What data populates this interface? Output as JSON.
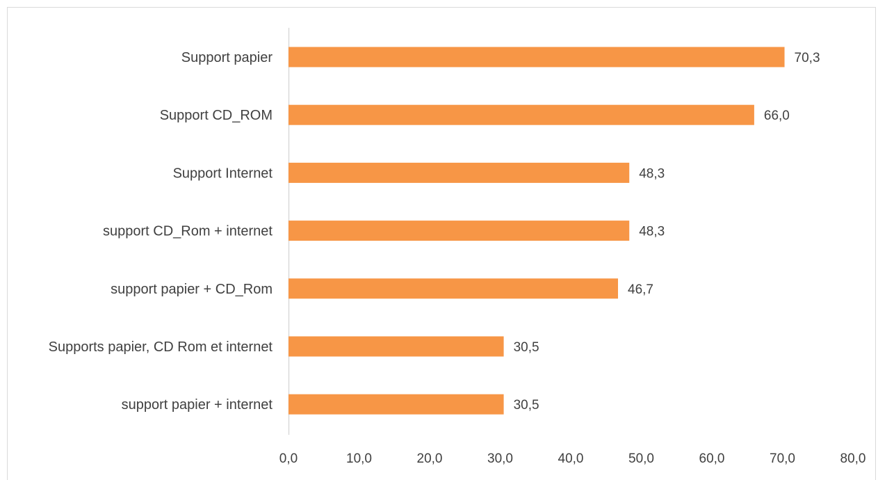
{
  "chart_data": {
    "type": "bar",
    "orientation": "horizontal",
    "categories": [
      "Support  papier",
      "Support  CD_ROM",
      "Support Internet",
      "support  CD_Rom + internet",
      "support  papier + CD_Rom",
      "Supports  papier,  CD Rom et internet",
      "support papier + internet"
    ],
    "values": [
      70.3,
      66.0,
      48.3,
      48.3,
      46.7,
      30.5,
      30.5
    ],
    "value_labels": [
      "70,3",
      "66,0",
      "48,3",
      "48,3",
      "46,7",
      "30,5",
      "30,5"
    ],
    "x_ticks": [
      "0,0",
      "10,0",
      "20,0",
      "30,0",
      "40,0",
      "50,0",
      "60,0",
      "70,0",
      "80,0"
    ],
    "xlim": [
      0,
      80
    ],
    "title": "",
    "xlabel": "",
    "ylabel": "",
    "grid": false,
    "legend": "none",
    "bar_color": "#F79646"
  }
}
